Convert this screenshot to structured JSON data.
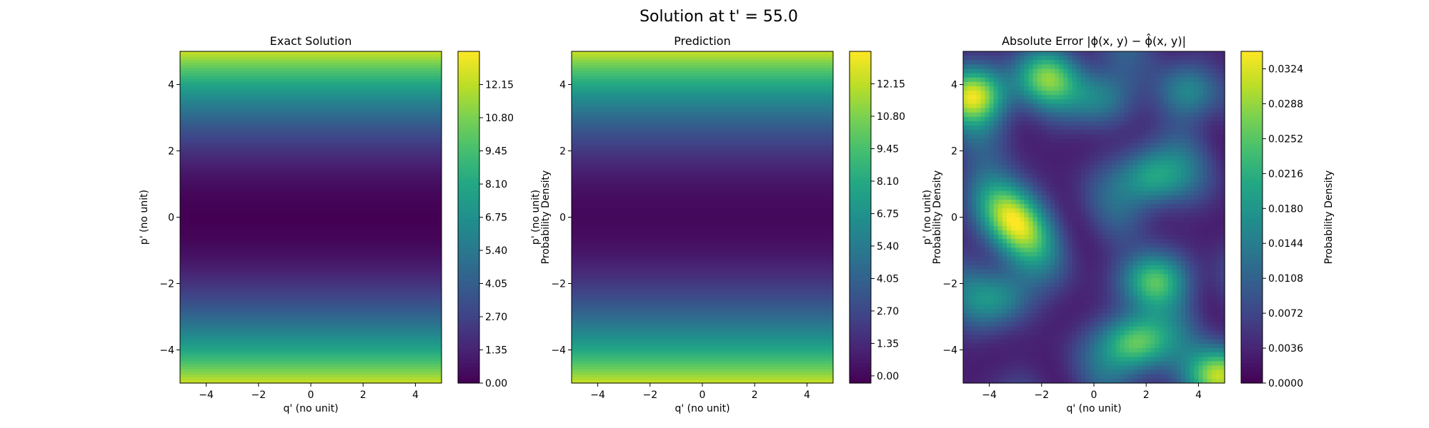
{
  "figure": {
    "title": "Solution at t' = 55.0",
    "colormap": "viridis"
  },
  "chart_data": [
    {
      "type": "heatmap",
      "title": "Exact Solution",
      "xlabel": "q' (no unit)",
      "ylabel": "p' (no unit)",
      "xlim": [
        -5,
        5
      ],
      "ylim": [
        -5,
        5
      ],
      "xticks": [
        "−4",
        "−2",
        "0",
        "2",
        "4"
      ],
      "xtick_values": [
        -4,
        -2,
        0,
        2,
        4
      ],
      "yticks": [
        "−4",
        "−2",
        "0",
        "2",
        "4"
      ],
      "ytick_values": [
        -4,
        -2,
        0,
        2,
        4
      ],
      "colorbar": {
        "label": "Probability Density",
        "range": [
          0,
          13.5
        ],
        "ticks": [
          "0.00",
          "1.35",
          "2.70",
          "4.05",
          "5.40",
          "6.75",
          "8.10",
          "9.45",
          "10.80",
          "12.15"
        ],
        "tick_values": [
          0,
          1.35,
          2.7,
          4.05,
          5.4,
          6.75,
          8.1,
          9.45,
          10.8,
          12.15
        ]
      },
      "field": "0.5 * p'^2 (varies with p' only)"
    },
    {
      "type": "heatmap",
      "title": "Prediction",
      "xlabel": "q' (no unit)",
      "ylabel": "p' (no unit)",
      "xlim": [
        -5,
        5
      ],
      "ylim": [
        -5,
        5
      ],
      "xticks": [
        "−4",
        "−2",
        "0",
        "2",
        "4"
      ],
      "xtick_values": [
        -4,
        -2,
        0,
        2,
        4
      ],
      "yticks": [
        "−4",
        "−2",
        "0",
        "2",
        "4"
      ],
      "ytick_values": [
        -4,
        -2,
        0,
        2,
        4
      ],
      "colorbar": {
        "label": "Probability Density",
        "range": [
          -0.3,
          13.5
        ],
        "ticks": [
          "0.00",
          "1.35",
          "2.70",
          "4.05",
          "5.40",
          "6.75",
          "8.10",
          "9.45",
          "10.80",
          "12.15"
        ],
        "tick_values": [
          0,
          1.35,
          2.7,
          4.05,
          5.4,
          6.75,
          8.1,
          9.45,
          10.8,
          12.15
        ]
      },
      "field": "approximately 0.5 * p'^2"
    },
    {
      "type": "heatmap",
      "title": "Absolute Error |ϕ(x, y) − ϕ̂(x, y)|",
      "xlabel": "q' (no unit)",
      "ylabel": "p' (no unit)",
      "xlim": [
        -5,
        5
      ],
      "ylim": [
        -5,
        5
      ],
      "xticks": [
        "−4",
        "−2",
        "0",
        "2",
        "4"
      ],
      "xtick_values": [
        -4,
        -2,
        0,
        2,
        4
      ],
      "yticks": [
        "−4",
        "−2",
        "0",
        "2",
        "4"
      ],
      "ytick_values": [
        -4,
        -2,
        0,
        2,
        4
      ],
      "colorbar": {
        "label": "Probability Density",
        "range": [
          0,
          0.0342
        ],
        "ticks": [
          "0.0000",
          "0.0036",
          "0.0072",
          "0.0108",
          "0.0144",
          "0.0180",
          "0.0216",
          "0.0252",
          "0.0288",
          "0.0324"
        ],
        "tick_values": [
          0,
          0.0036,
          0.0072,
          0.0108,
          0.0144,
          0.018,
          0.0216,
          0.0252,
          0.0288,
          0.0324
        ]
      },
      "field": "irregular error pattern, max about 0.034 near (q'=-3.2, p'=0)",
      "peaks": [
        {
          "q": -3.2,
          "p": 0.0,
          "value": 0.034
        },
        {
          "q": -4.6,
          "p": 3.7,
          "value": 0.031
        },
        {
          "q": 2.3,
          "p": -1.9,
          "value": 0.025
        },
        {
          "q": 1.6,
          "p": -3.8,
          "value": 0.027
        },
        {
          "q": 4.8,
          "p": -4.8,
          "value": 0.033
        },
        {
          "q": 2.2,
          "p": 1.2,
          "value": 0.02
        },
        {
          "q": -1.8,
          "p": 4.2,
          "value": 0.02
        },
        {
          "q": 0.2,
          "p": 3.6,
          "value": 0.014
        },
        {
          "q": 3.6,
          "p": 3.8,
          "value": 0.015
        },
        {
          "q": -3.6,
          "p": -2.4,
          "value": 0.015
        }
      ]
    }
  ]
}
